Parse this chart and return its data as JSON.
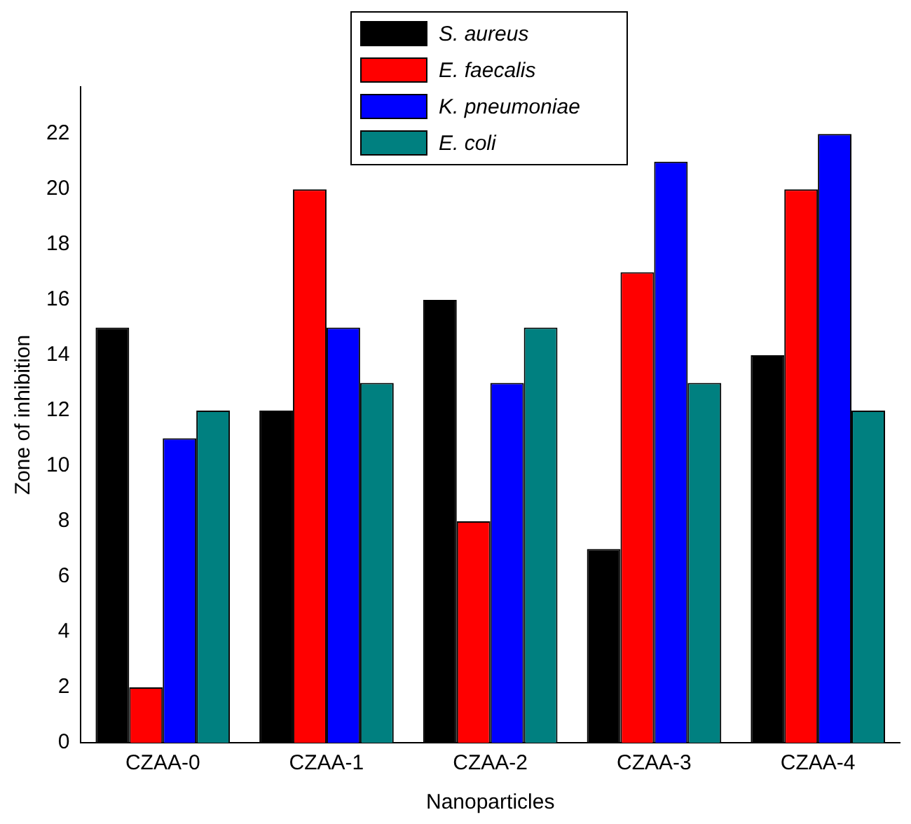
{
  "chart_data": {
    "type": "bar",
    "xlabel": "Nanoparticles",
    "ylabel": "Zone of inhibition",
    "categories": [
      "CZAA-0",
      "CZAA-1",
      "CZAA-2",
      "CZAA-3",
      "CZAA-4"
    ],
    "series": [
      {
        "name": "S. aureus",
        "color": "#000000",
        "values": [
          15,
          12,
          16,
          7,
          14
        ]
      },
      {
        "name": "E. faecalis",
        "color": "#ff0000",
        "values": [
          2,
          20,
          8,
          17,
          20
        ]
      },
      {
        "name": "K. pneumoniae",
        "color": "#0000ff",
        "values": [
          11,
          15,
          13,
          21,
          22
        ]
      },
      {
        "name": "E. coli",
        "color": "#008080",
        "values": [
          12,
          13,
          15,
          13,
          12
        ]
      }
    ],
    "ylim": [
      0,
      23.7
    ],
    "yticks": [
      0,
      2,
      4,
      6,
      8,
      10,
      12,
      14,
      16,
      18,
      20,
      22
    ],
    "grid": false,
    "legend": "top"
  }
}
